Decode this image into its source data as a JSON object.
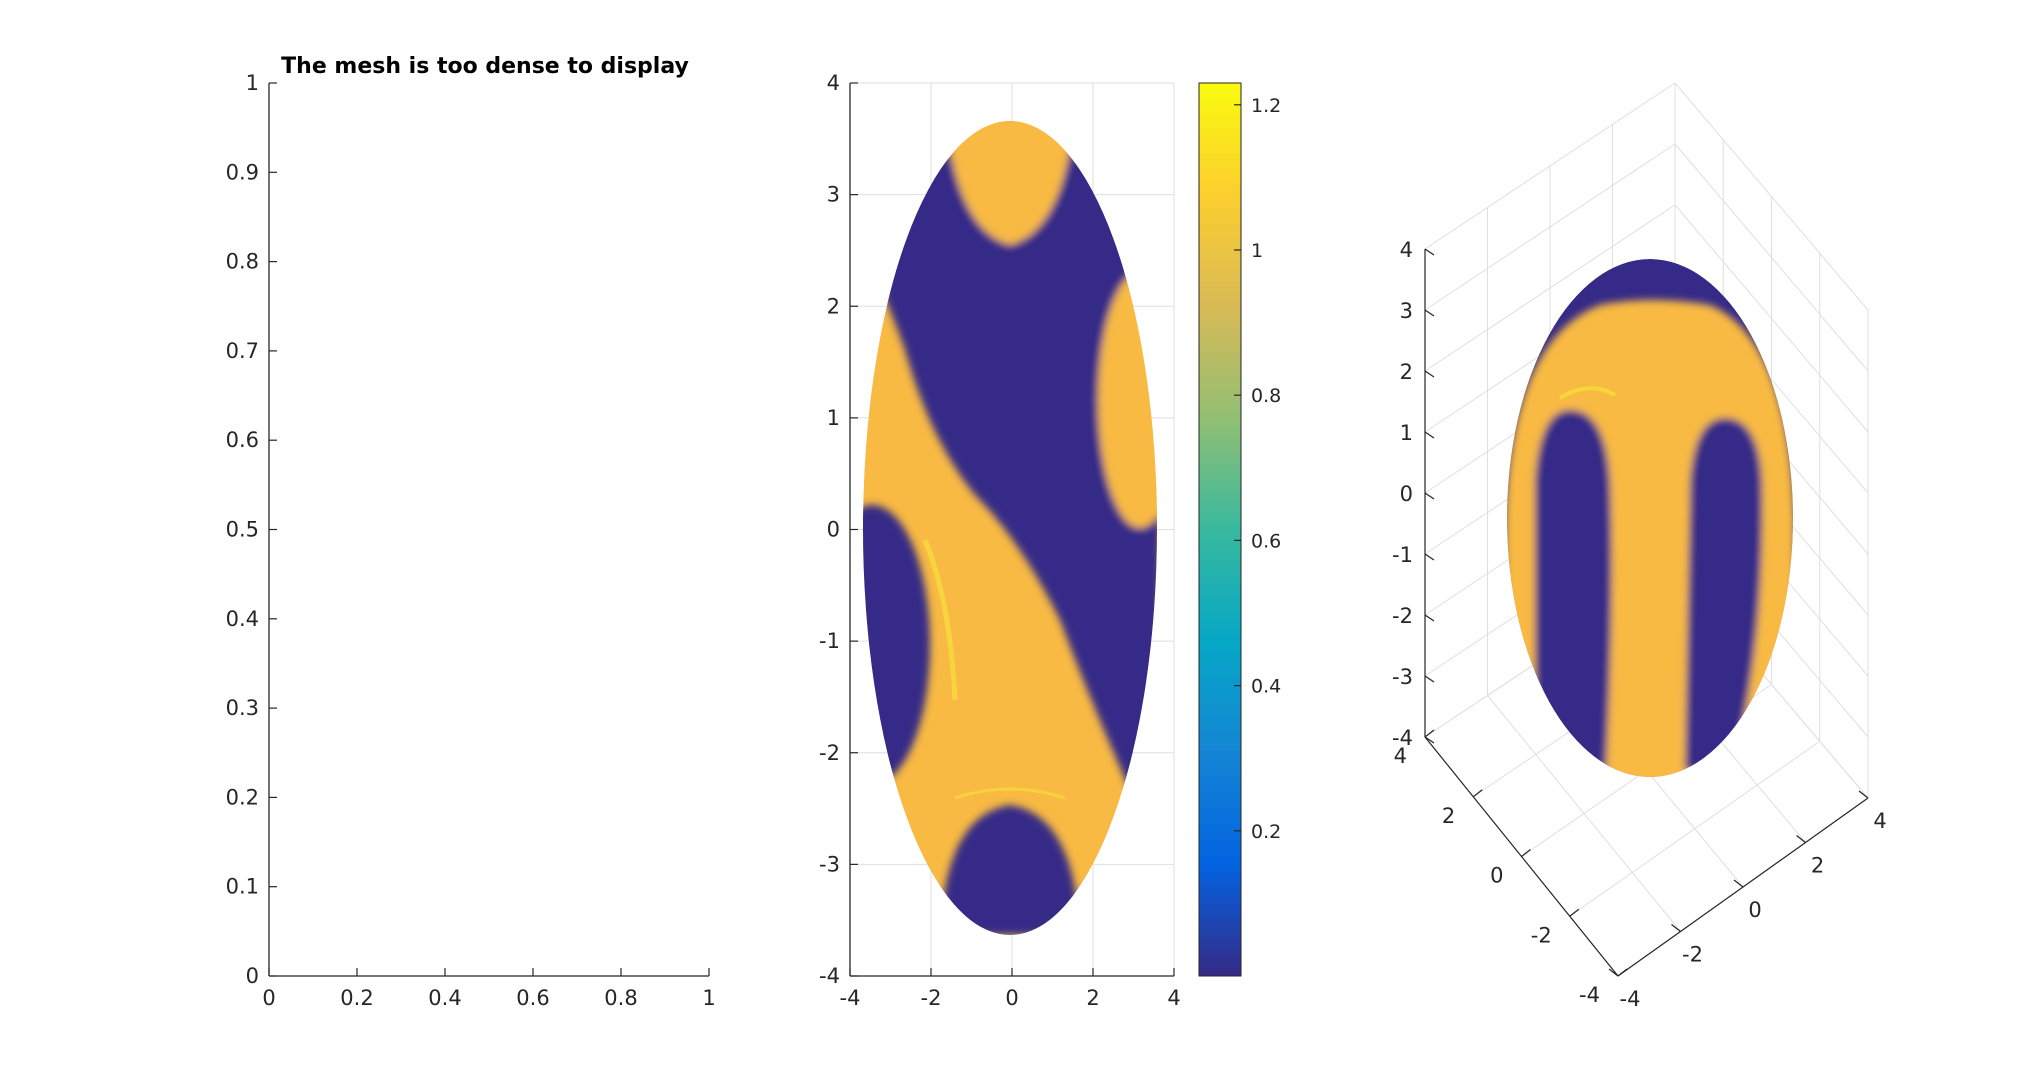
{
  "figure": {
    "background": "#ffffff",
    "axis_color": "#262626",
    "grid_color": "#dfdfdf"
  },
  "chart_data": [
    {
      "type": "line",
      "panel": "left",
      "title": "The mesh is too dense to display",
      "xlim": [
        0,
        1
      ],
      "ylim": [
        0,
        1
      ],
      "xticks": [
        "0",
        "0.2",
        "0.4",
        "0.6",
        "0.8",
        "1"
      ],
      "yticks": [
        "0",
        "0.1",
        "0.2",
        "0.3",
        "0.4",
        "0.5",
        "0.6",
        "0.7",
        "0.8",
        "0.9",
        "1"
      ],
      "grid": false,
      "series": []
    },
    {
      "type": "heatmap",
      "panel": "middle",
      "xlim": [
        -4,
        4
      ],
      "ylim": [
        -4,
        4
      ],
      "xticks": [
        "-4",
        "-2",
        "0",
        "2",
        "4"
      ],
      "yticks": [
        "-4",
        "-3",
        "-2",
        "-1",
        "0",
        "1",
        "2",
        "3",
        "4"
      ],
      "grid": true,
      "domain": {
        "shape": "ellipse",
        "center": [
          0,
          0
        ],
        "semi_axis_x": 3.6,
        "semi_axis_y": 3.65
      },
      "low_color": "#352a87",
      "high_color": "#f8ba43",
      "colorbar": {
        "clim": [
          0,
          1.23
        ],
        "ticks": [
          "0.2",
          "0.4",
          "0.6",
          "0.8",
          "1",
          "1.2"
        ],
        "colormap": [
          "#352a87",
          "#0363e1",
          "#1485d4",
          "#06a7c6",
          "#38b99e",
          "#92bf73",
          "#d9ba56",
          "#fcce2e",
          "#f9fb0e"
        ]
      }
    },
    {
      "type": "heatmap",
      "panel": "right",
      "view": "3d",
      "xlim": [
        -4,
        4
      ],
      "ylim": [
        -4,
        4
      ],
      "zlim": [
        -4,
        4
      ],
      "xticks": [
        "-4",
        "-2",
        "0",
        "2",
        "4"
      ],
      "yticks": [
        "-4",
        "-2",
        "0",
        "2",
        "4"
      ],
      "zticks": [
        "-4",
        "-3",
        "-2",
        "-1",
        "0",
        "1",
        "2",
        "3",
        "4"
      ],
      "grid": true,
      "low_color": "#352a87",
      "high_color": "#f8ba43"
    }
  ]
}
